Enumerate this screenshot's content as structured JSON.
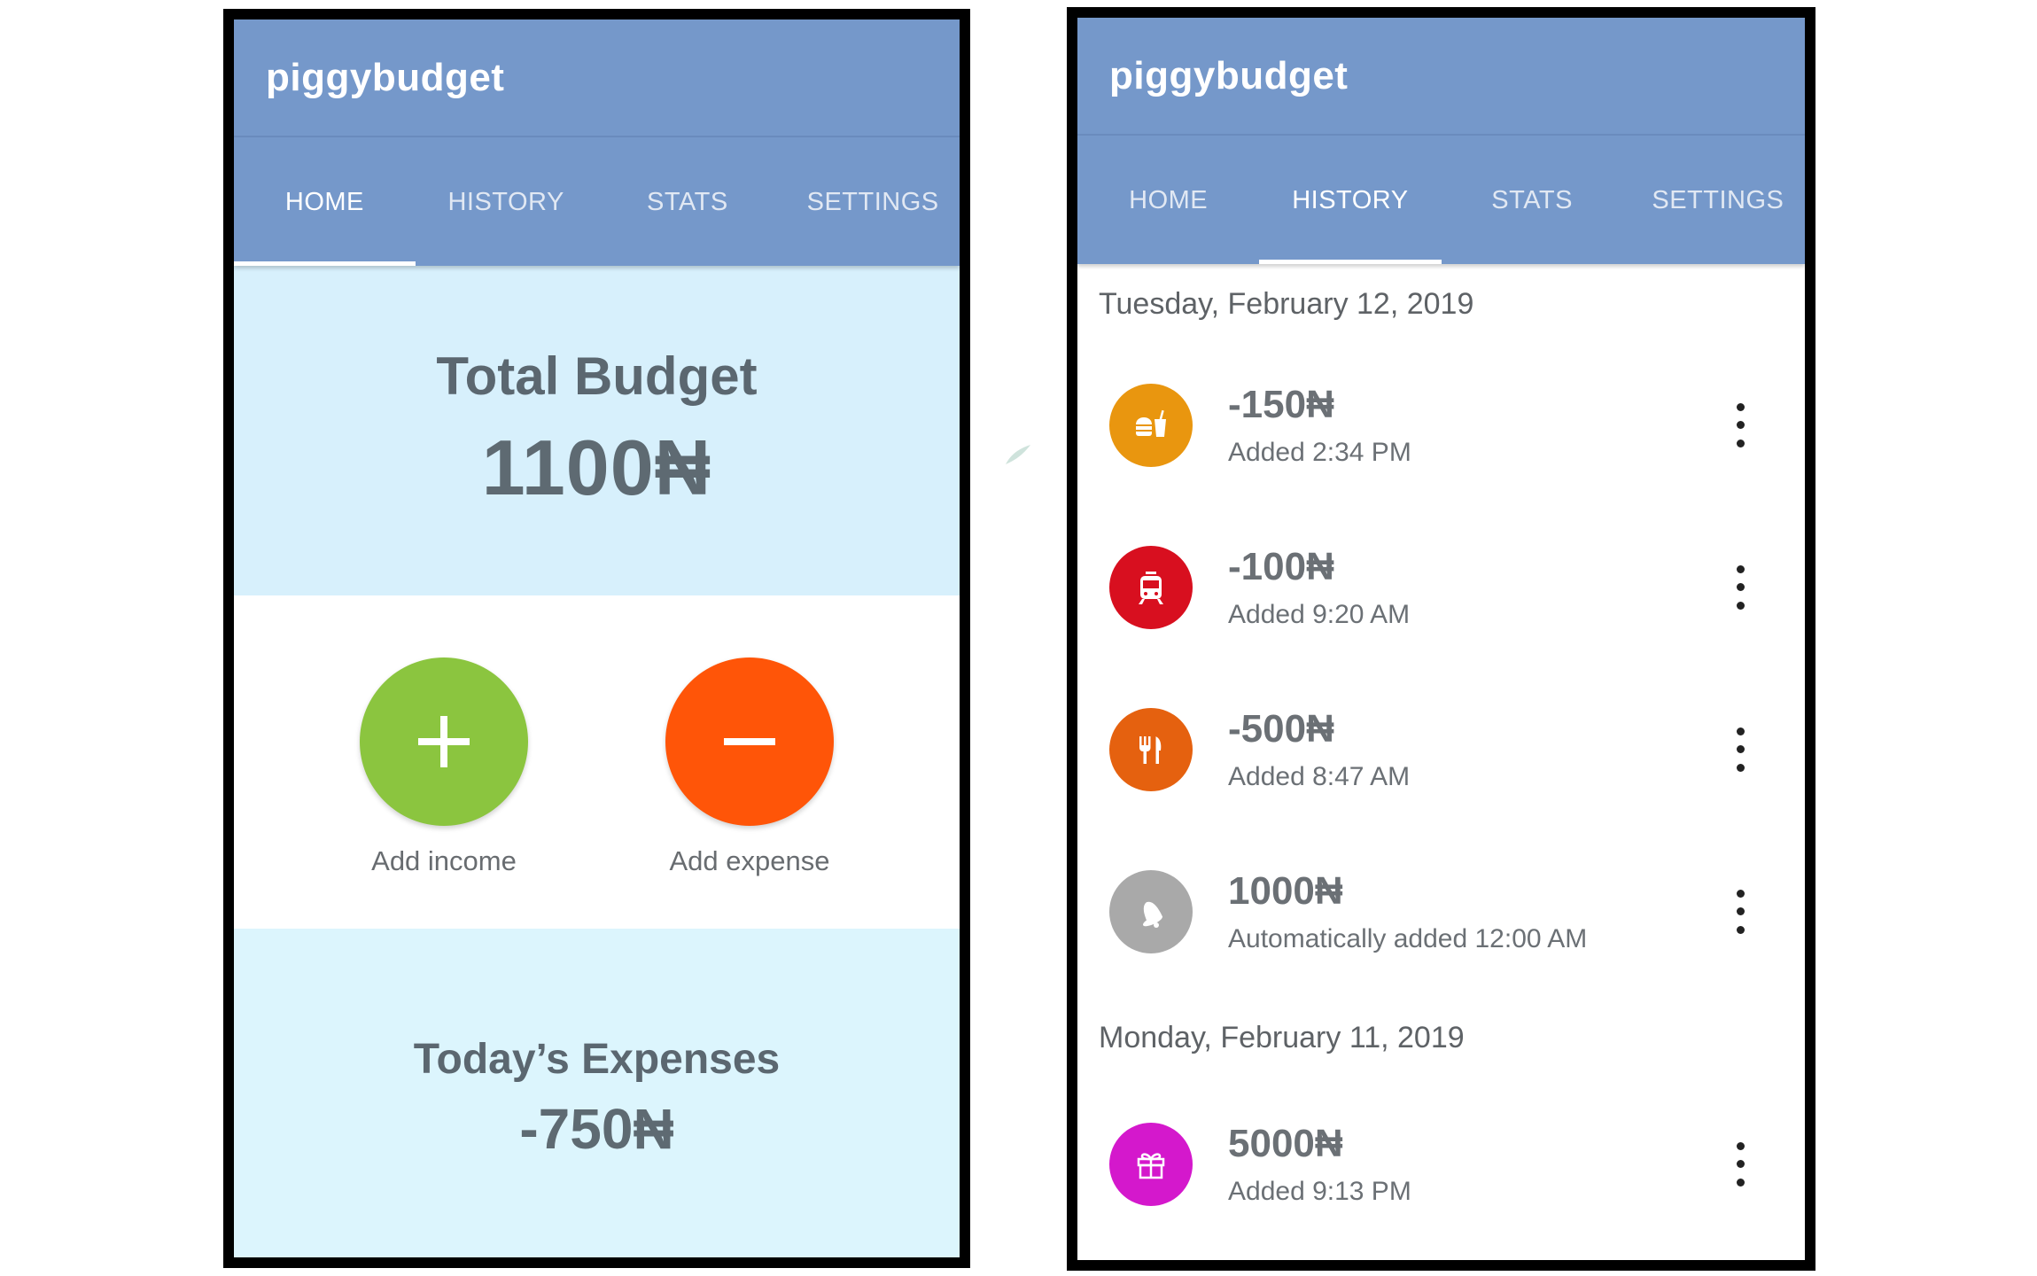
{
  "home": {
    "app_title": "piggybudget",
    "tabs": [
      {
        "label": "HOME",
        "active": true
      },
      {
        "label": "HISTORY",
        "active": false
      },
      {
        "label": "STATS",
        "active": false
      },
      {
        "label": "SETTINGS",
        "active": false
      }
    ],
    "total_budget_title": "Total Budget",
    "total_budget_value": "1100₦",
    "add_income_label": "Add income",
    "add_expense_label": "Add expense",
    "todays_expenses_title": "Today’s Expenses",
    "todays_expenses_value": "-750₦"
  },
  "history": {
    "app_title": "piggybudget",
    "tabs": [
      {
        "label": "HOME",
        "active": false
      },
      {
        "label": "HISTORY",
        "active": true
      },
      {
        "label": "STATS",
        "active": false
      },
      {
        "label": "SETTINGS",
        "active": false
      }
    ],
    "days": [
      {
        "date": "Tuesday, February 12, 2019",
        "entries": [
          {
            "amount": "-150₦",
            "sub": "Added 2:34 PM",
            "icon": "fast-food-icon",
            "color": "#e9960f"
          },
          {
            "amount": "-100₦",
            "sub": "Added 9:20 AM",
            "icon": "tram-icon",
            "color": "#d80f1f"
          },
          {
            "amount": "-500₦",
            "sub": "Added 8:47 AM",
            "icon": "restaurant-icon",
            "color": "#e5610f"
          },
          {
            "amount": "1000₦",
            "sub": "Automatically added 12:00 AM",
            "icon": "bell-icon",
            "color": "#a9a9a9"
          }
        ]
      },
      {
        "date": "Monday, February 11, 2019",
        "entries": [
          {
            "amount": "5000₦",
            "sub": "Added 9:13 PM",
            "icon": "gift-icon",
            "color": "#d418cc"
          }
        ]
      }
    ]
  }
}
